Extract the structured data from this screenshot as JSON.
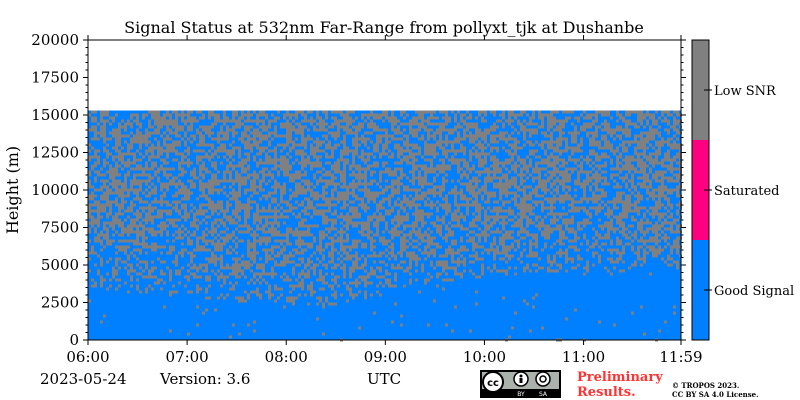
{
  "chart_data": {
    "type": "heatmap",
    "title": "Signal Status at 532nm Far-Range from pollyxt_tjk at Dushanbe",
    "xlabel": "UTC",
    "ylabel": "Height (m)",
    "x_ticks": [
      "06:00",
      "07:00",
      "08:00",
      "09:00",
      "10:00",
      "11:00",
      "11:59"
    ],
    "x_tick_minutes": [
      0,
      60,
      120,
      180,
      240,
      300,
      359
    ],
    "y_ticks": [
      0,
      2500,
      5000,
      7500,
      10000,
      12500,
      15000,
      17500,
      20000
    ],
    "ylim": [
      0,
      20000
    ],
    "xlim_minutes": [
      0,
      359
    ],
    "data_top_height": 15300,
    "categories": [
      "Good Signal",
      "Saturated",
      "Low SNR"
    ],
    "category_colors": [
      "#0080ff",
      "#ff0080",
      "#808080"
    ],
    "good_signal_base_height": [
      {
        "minute": 0,
        "height": 3600
      },
      {
        "minute": 30,
        "height": 3200
      },
      {
        "minute": 60,
        "height": 3000
      },
      {
        "minute": 90,
        "height": 2700
      },
      {
        "minute": 120,
        "height": 2500
      },
      {
        "minute": 150,
        "height": 2400
      },
      {
        "minute": 180,
        "height": 3200
      },
      {
        "minute": 210,
        "height": 4000
      },
      {
        "minute": 240,
        "height": 4300
      },
      {
        "minute": 270,
        "height": 4500
      },
      {
        "minute": 300,
        "height": 4600
      },
      {
        "minute": 330,
        "height": 4700
      },
      {
        "minute": 359,
        "height": 4800
      }
    ],
    "aerosol_layer_top": [
      {
        "minute": 0,
        "height": 9000
      },
      {
        "minute": 20,
        "height": 8500
      },
      {
        "minute": 40,
        "height": 9000
      },
      {
        "minute": 60,
        "height": 8000
      },
      {
        "minute": 80,
        "height": 7000
      },
      {
        "minute": 100,
        "height": 6500
      },
      {
        "minute": 130,
        "height": 8000
      },
      {
        "minute": 160,
        "height": 9000
      },
      {
        "minute": 190,
        "height": 7000
      },
      {
        "minute": 220,
        "height": 6500
      },
      {
        "minute": 250,
        "height": 7500
      },
      {
        "minute": 280,
        "height": 8000
      },
      {
        "minute": 300,
        "height": 9000
      },
      {
        "minute": 330,
        "height": 7000
      },
      {
        "minute": 359,
        "height": 6000
      }
    ]
  },
  "footer": {
    "date": "2023-05-24",
    "version": "Version: 3.6",
    "xunit": "UTC",
    "cc_labels": [
      "BY",
      "SA"
    ],
    "preliminary_line1": "Preliminary",
    "preliminary_line2": "Results.",
    "copyright_line1": "© TROPOS 2023.",
    "copyright_line2": "CC BY SA 4.0 License."
  },
  "colors": {
    "good": "#0080ff",
    "saturated": "#ff0080",
    "low_snr": "#808080",
    "preliminary": "#ff3333"
  }
}
